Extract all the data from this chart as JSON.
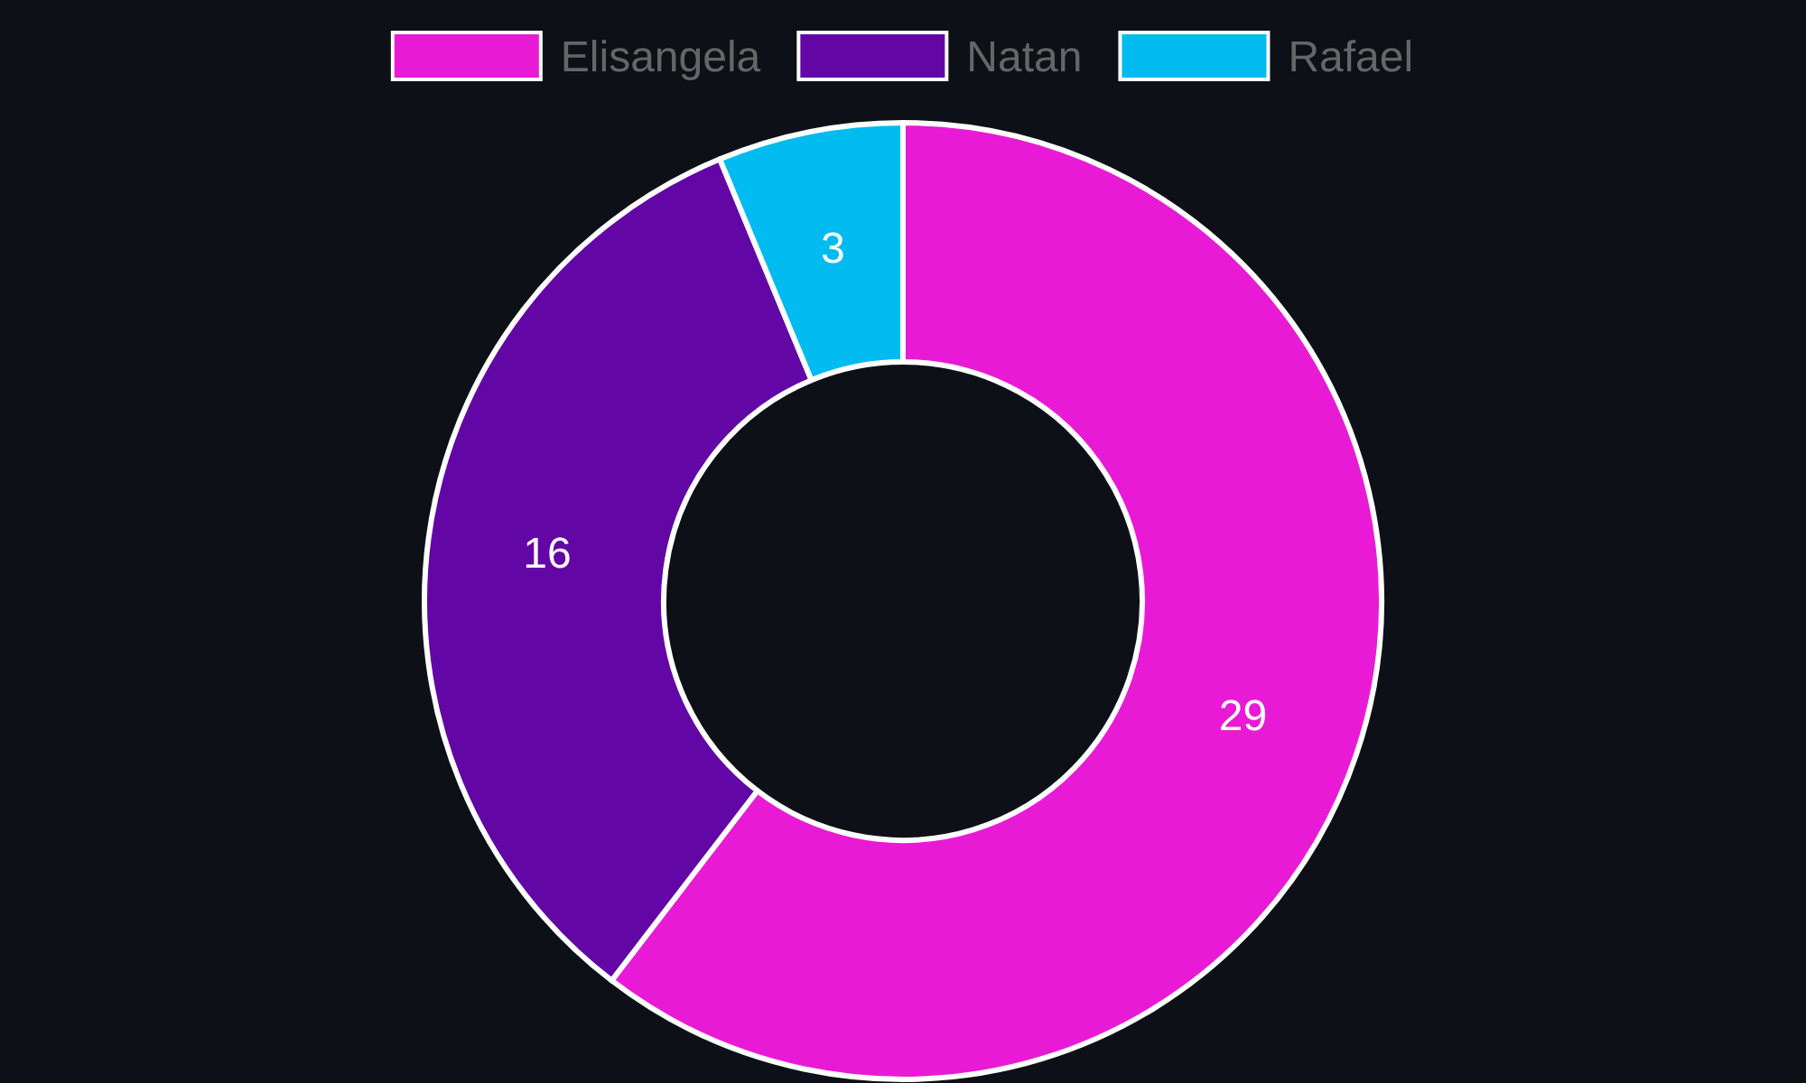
{
  "chart_data": {
    "type": "donut",
    "categories": [
      "Elisangela",
      "Natan",
      "Rafael"
    ],
    "values": [
      29,
      16,
      3
    ],
    "colors": [
      "#e91ad6",
      "#6207a6",
      "#00bbef"
    ],
    "data_labels": true,
    "legend": "top"
  }
}
